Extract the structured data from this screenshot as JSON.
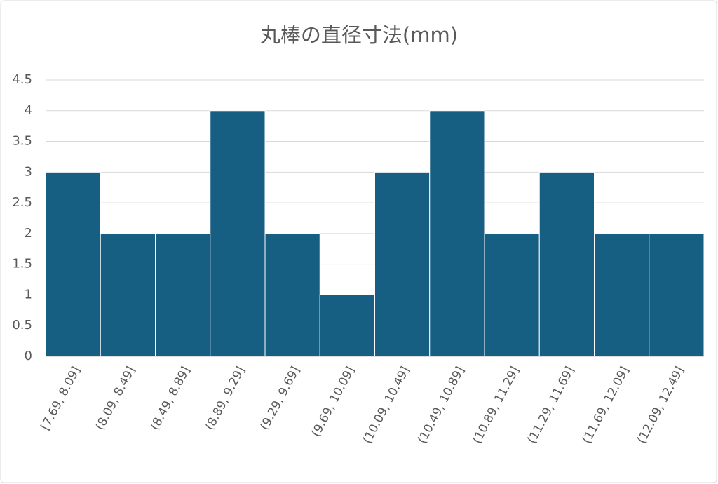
{
  "chart_data": {
    "type": "bar",
    "title": "丸棒の直径寸法(mm)",
    "categories": [
      "[7.69, 8.09]",
      "(8.09, 8.49]",
      "(8.49, 8.89]",
      "(8.89, 9.29]",
      "(9.29, 9.69]",
      "(9.69, 10.09]",
      "(10.09, 10.49]",
      "(10.49, 10.89]",
      "(10.89, 11.29]",
      "(11.29, 11.69]",
      "(11.69, 12.09]",
      "(12.09, 12.49]"
    ],
    "values": [
      3,
      2,
      2,
      4,
      2,
      1,
      3,
      4,
      2,
      3,
      2,
      2
    ],
    "color": "#175e83",
    "ylim": [
      0,
      4.5
    ],
    "yticks": [
      0,
      0.5,
      1,
      1.5,
      2,
      2.5,
      3,
      3.5,
      4,
      4.5
    ],
    "grid": true
  }
}
